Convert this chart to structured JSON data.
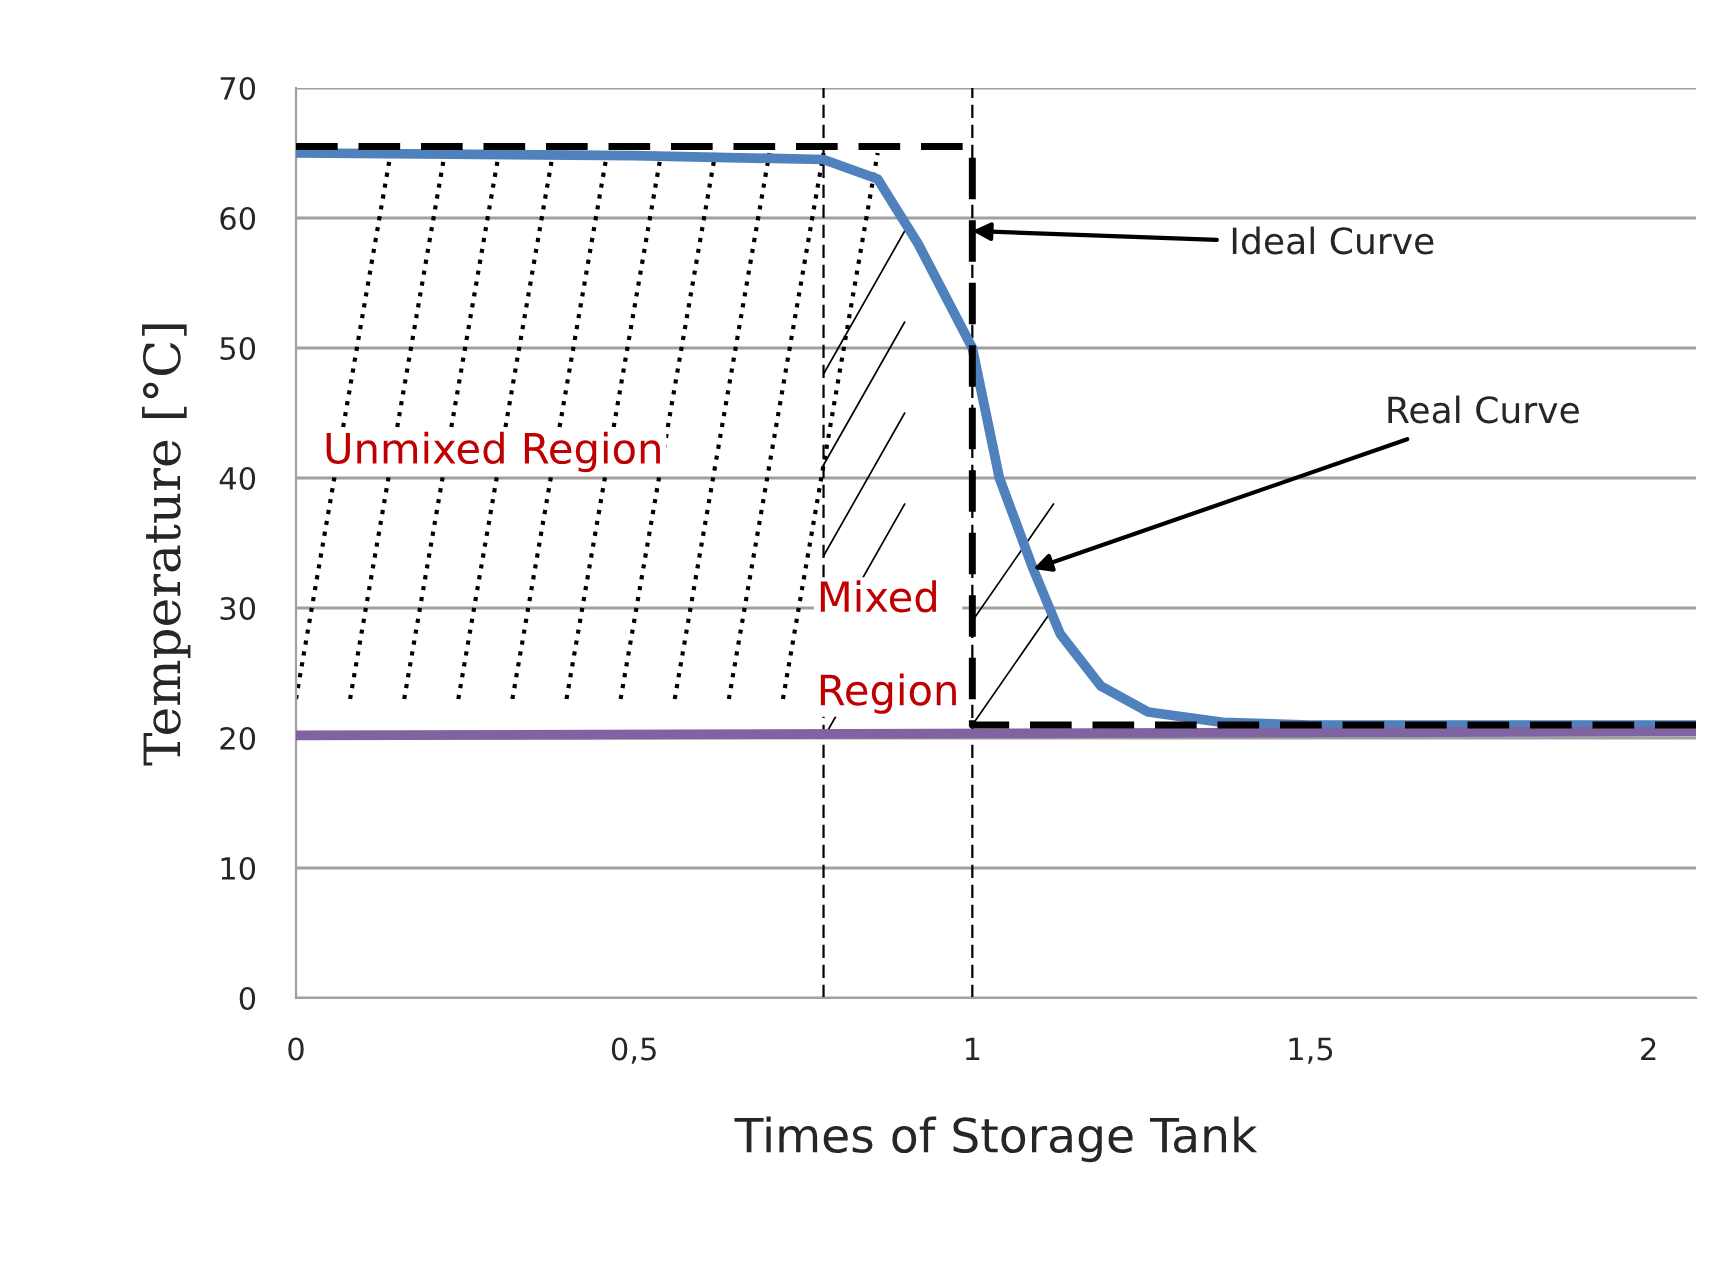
{
  "chart_data": {
    "type": "line",
    "xlabel": "Times of Storage Tank",
    "ylabel": "Temperature [°C]",
    "xlim": [
      0,
      2.07
    ],
    "xticks": [
      0,
      {
        "value": 0.5,
        "label": "0,5"
      },
      1,
      {
        "value": 1.5,
        "label": "1,5"
      },
      2
    ],
    "ylim": [
      0,
      70
    ],
    "yticks": [
      0,
      10,
      20,
      30,
      40,
      50,
      60,
      70
    ],
    "grid": "y",
    "legend": false,
    "series": [
      {
        "color": "#000000",
        "line_style": "dashed",
        "x": [
          0,
          1,
          1,
          2.07
        ],
        "values": [
          65.5,
          65.5,
          21,
          21
        ]
      },
      {
        "color": "#4f81bd",
        "line_style": "solid",
        "x": [
          0,
          0.5,
          0.78,
          0.86,
          0.92,
          0.98,
          1.0,
          1.04,
          1.09,
          1.13,
          1.19,
          1.26,
          1.37,
          1.5,
          2.07
        ],
        "values": [
          65,
          64.8,
          64.5,
          63,
          58,
          52,
          50,
          40,
          33,
          28,
          24,
          22,
          21.2,
          21,
          21
        ]
      },
      {
        "color": "#8064a2",
        "line_style": "solid",
        "x": [
          0,
          2.07
        ],
        "values": [
          20.2,
          20.5
        ]
      }
    ],
    "ref_lines": [
      {
        "axis": "x",
        "value": 0.78,
        "color": "#000000",
        "line_style": "dashed"
      },
      {
        "axis": "x",
        "value": 1.0,
        "color": "#000000",
        "line_style": "dashed"
      }
    ],
    "annotations": [
      {
        "text": "Ideal Curve",
        "x": 1.0,
        "y": 59
      },
      {
        "text": "Real Curve",
        "x": 1.09,
        "y": 33
      },
      "Unmixed Region",
      "Mixed\n\nRegion"
    ]
  }
}
